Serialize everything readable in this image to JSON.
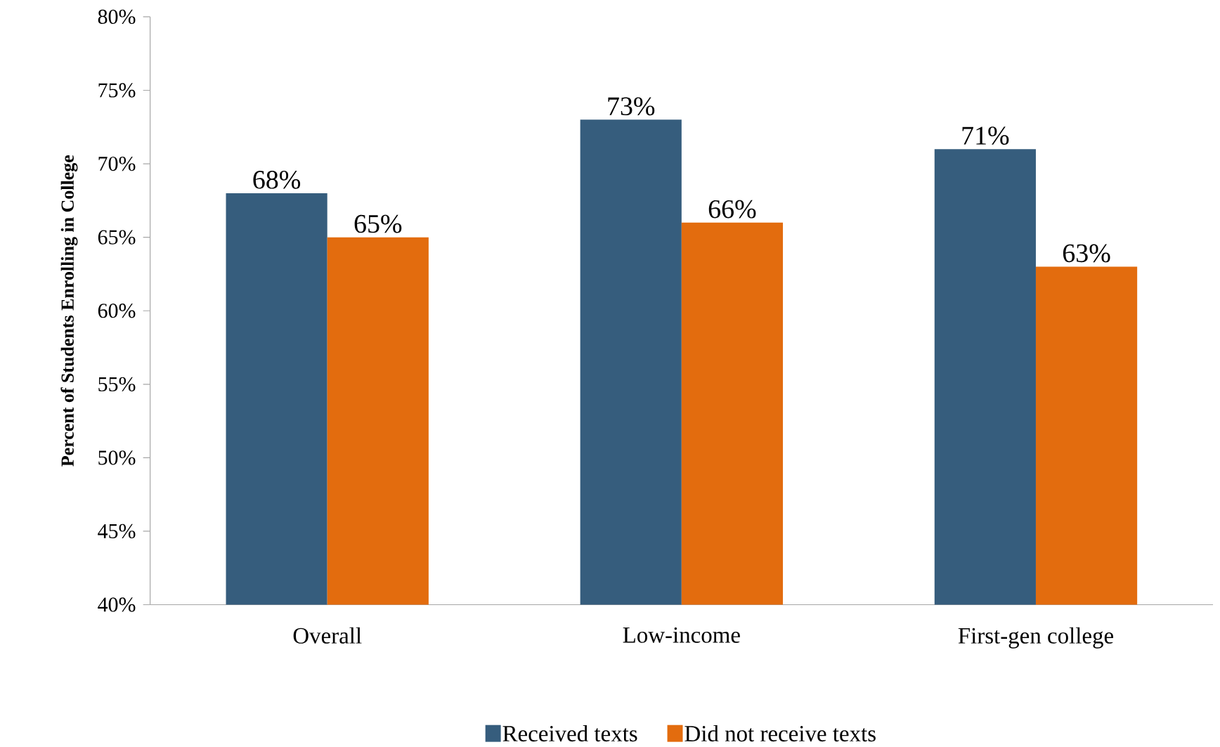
{
  "chart_data": {
    "type": "bar",
    "ylabel": "Percent of  Students Enrolling in College",
    "categories": [
      "Overall",
      "Low-income",
      "First-gen college"
    ],
    "series": [
      {
        "name": "Received texts",
        "color": "#365d7d",
        "values": [
          68,
          73,
          71
        ],
        "value_labels": [
          "68%",
          "73%",
          "71%"
        ]
      },
      {
        "name": "Did not receive texts",
        "color": "#e36c0e",
        "values": [
          65,
          66,
          63
        ],
        "value_labels": [
          "65%",
          "66%",
          "63%"
        ]
      }
    ],
    "ylim": [
      40,
      80
    ],
    "yticks": [
      {
        "value": 40,
        "label": "40%"
      },
      {
        "value": 45,
        "label": "45%"
      },
      {
        "value": 50,
        "label": "50%"
      },
      {
        "value": 55,
        "label": "55%"
      },
      {
        "value": 60,
        "label": "60%"
      },
      {
        "value": 65,
        "label": "65%"
      },
      {
        "value": 70,
        "label": "70%"
      },
      {
        "value": 75,
        "label": "75%"
      },
      {
        "value": 80,
        "label": "80%"
      }
    ],
    "legend": "bottom",
    "grid": false
  }
}
